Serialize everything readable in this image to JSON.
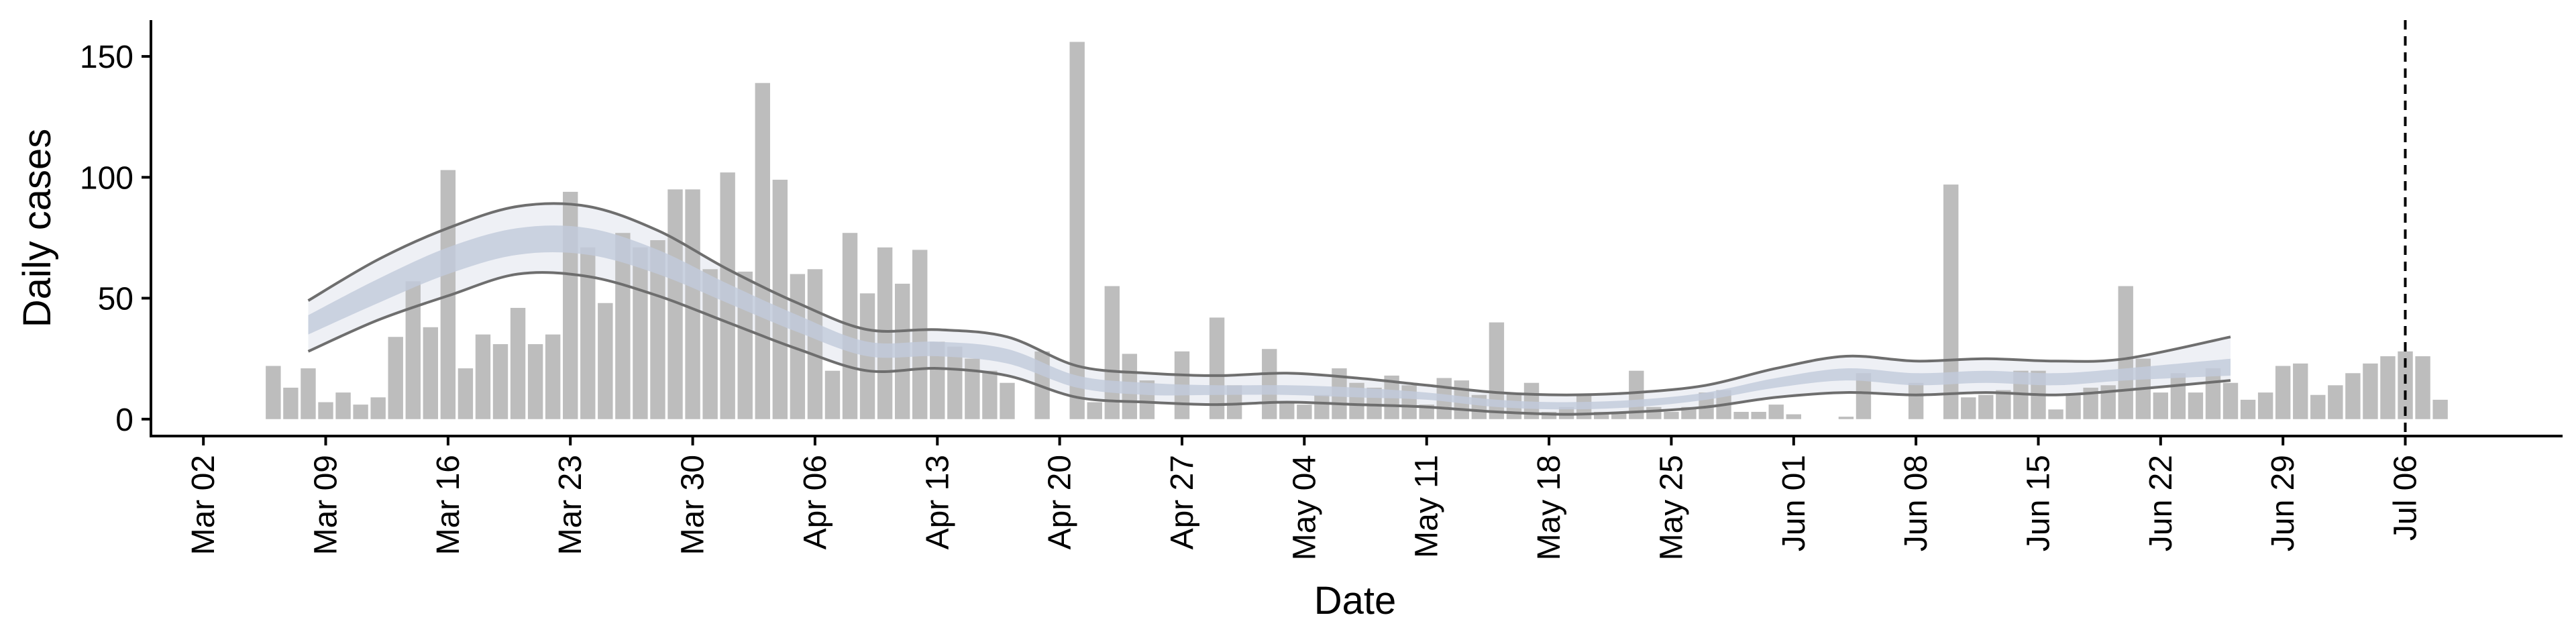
{
  "chart_data": {
    "type": "bar",
    "xlabel": "Date",
    "ylabel": "Daily cases",
    "x_range": [
      "2020-02-28",
      "2020-07-15"
    ],
    "ylim": [
      -7,
      165
    ],
    "y_ticks": [
      0,
      50,
      100,
      150
    ],
    "x_ticks": [
      {
        "date": "2020-03-02",
        "label": "Mar 02"
      },
      {
        "date": "2020-03-09",
        "label": "Mar 09"
      },
      {
        "date": "2020-03-16",
        "label": "Mar 16"
      },
      {
        "date": "2020-03-23",
        "label": "Mar 23"
      },
      {
        "date": "2020-03-30",
        "label": "Mar 30"
      },
      {
        "date": "2020-04-06",
        "label": "Apr 06"
      },
      {
        "date": "2020-04-13",
        "label": "Apr 13"
      },
      {
        "date": "2020-04-20",
        "label": "Apr 20"
      },
      {
        "date": "2020-04-27",
        "label": "Apr 27"
      },
      {
        "date": "2020-05-04",
        "label": "May 04"
      },
      {
        "date": "2020-05-11",
        "label": "May 11"
      },
      {
        "date": "2020-05-18",
        "label": "May 18"
      },
      {
        "date": "2020-05-25",
        "label": "May 25"
      },
      {
        "date": "2020-06-01",
        "label": "Jun 01"
      },
      {
        "date": "2020-06-08",
        "label": "Jun 08"
      },
      {
        "date": "2020-06-15",
        "label": "Jun 15"
      },
      {
        "date": "2020-06-22",
        "label": "Jun 22"
      },
      {
        "date": "2020-06-29",
        "label": "Jun 29"
      },
      {
        "date": "2020-07-06",
        "label": "Jul 06"
      }
    ],
    "grid": false,
    "reference_line": {
      "date": "2020-07-06",
      "style": "dashed"
    },
    "colors": {
      "bars": "#bdbdbd",
      "outer_band": "#e8eaf1",
      "inner_band": "#c2cadc",
      "bound_lines": "#6e6e6e"
    },
    "bars": {
      "start_date": "2020-03-06",
      "values": [
        22,
        13,
        21,
        7,
        11,
        6,
        9,
        34,
        57,
        38,
        103,
        21,
        35,
        31,
        46,
        31,
        35,
        94,
        71,
        48,
        77,
        71,
        74,
        95,
        95,
        62,
        102,
        61,
        139,
        99,
        60,
        62,
        20,
        77,
        52,
        71,
        56,
        70,
        32,
        30,
        25,
        20,
        15,
        0,
        28,
        0,
        156,
        7,
        55,
        27,
        16,
        0,
        28,
        0,
        42,
        14,
        0,
        29,
        7,
        6,
        10,
        21,
        15,
        13,
        18,
        14,
        6,
        17,
        16,
        10,
        40,
        11,
        15,
        3,
        5,
        10,
        3,
        3,
        20,
        5,
        3,
        5,
        11,
        12,
        3,
        3,
        6,
        2,
        0,
        0,
        1,
        19,
        0,
        0,
        15,
        0,
        97,
        9,
        10,
        12,
        20,
        20,
        4,
        10,
        13,
        14,
        55,
        25,
        11,
        19,
        11,
        21,
        15,
        8,
        11,
        22,
        23,
        10,
        14,
        19,
        23,
        26,
        28,
        26,
        8
      ]
    },
    "estimate_bands": {
      "dates": [
        "2020-03-08",
        "2020-03-12",
        "2020-03-16",
        "2020-03-20",
        "2020-03-24",
        "2020-03-28",
        "2020-04-01",
        "2020-04-05",
        "2020-04-09",
        "2020-04-13",
        "2020-04-17",
        "2020-04-21",
        "2020-04-25",
        "2020-04-29",
        "2020-05-03",
        "2020-05-07",
        "2020-05-11",
        "2020-05-15",
        "2020-05-19",
        "2020-05-23",
        "2020-05-27",
        "2020-05-31",
        "2020-06-04",
        "2020-06-08",
        "2020-06-12",
        "2020-06-16",
        "2020-06-20",
        "2020-06-26"
      ],
      "upper": [
        49,
        66,
        79,
        88,
        88,
        78,
        62,
        48,
        37,
        37,
        34,
        22,
        19,
        18,
        19,
        17,
        14,
        11,
        10,
        11,
        14,
        21,
        26,
        24,
        25,
        24,
        25,
        34
      ],
      "upper_inner": [
        43,
        58,
        71,
        79,
        79,
        70,
        56,
        43,
        32,
        32,
        29,
        18,
        15,
        14,
        14,
        13,
        11,
        8,
        7,
        8,
        11,
        17,
        21,
        19,
        20,
        19,
        21,
        25
      ],
      "lower_inner": [
        35,
        48,
        60,
        68,
        68,
        60,
        48,
        36,
        26,
        26,
        23,
        13,
        10,
        10,
        10,
        9,
        8,
        5,
        4,
        5,
        8,
        13,
        16,
        14,
        15,
        14,
        16,
        18
      ],
      "lower": [
        28,
        41,
        51,
        60,
        59,
        51,
        40,
        29,
        20,
        21,
        18,
        9,
        7,
        6,
        7,
        6,
        5,
        3,
        2,
        3,
        5,
        9,
        11,
        10,
        11,
        10,
        12,
        16
      ]
    }
  }
}
